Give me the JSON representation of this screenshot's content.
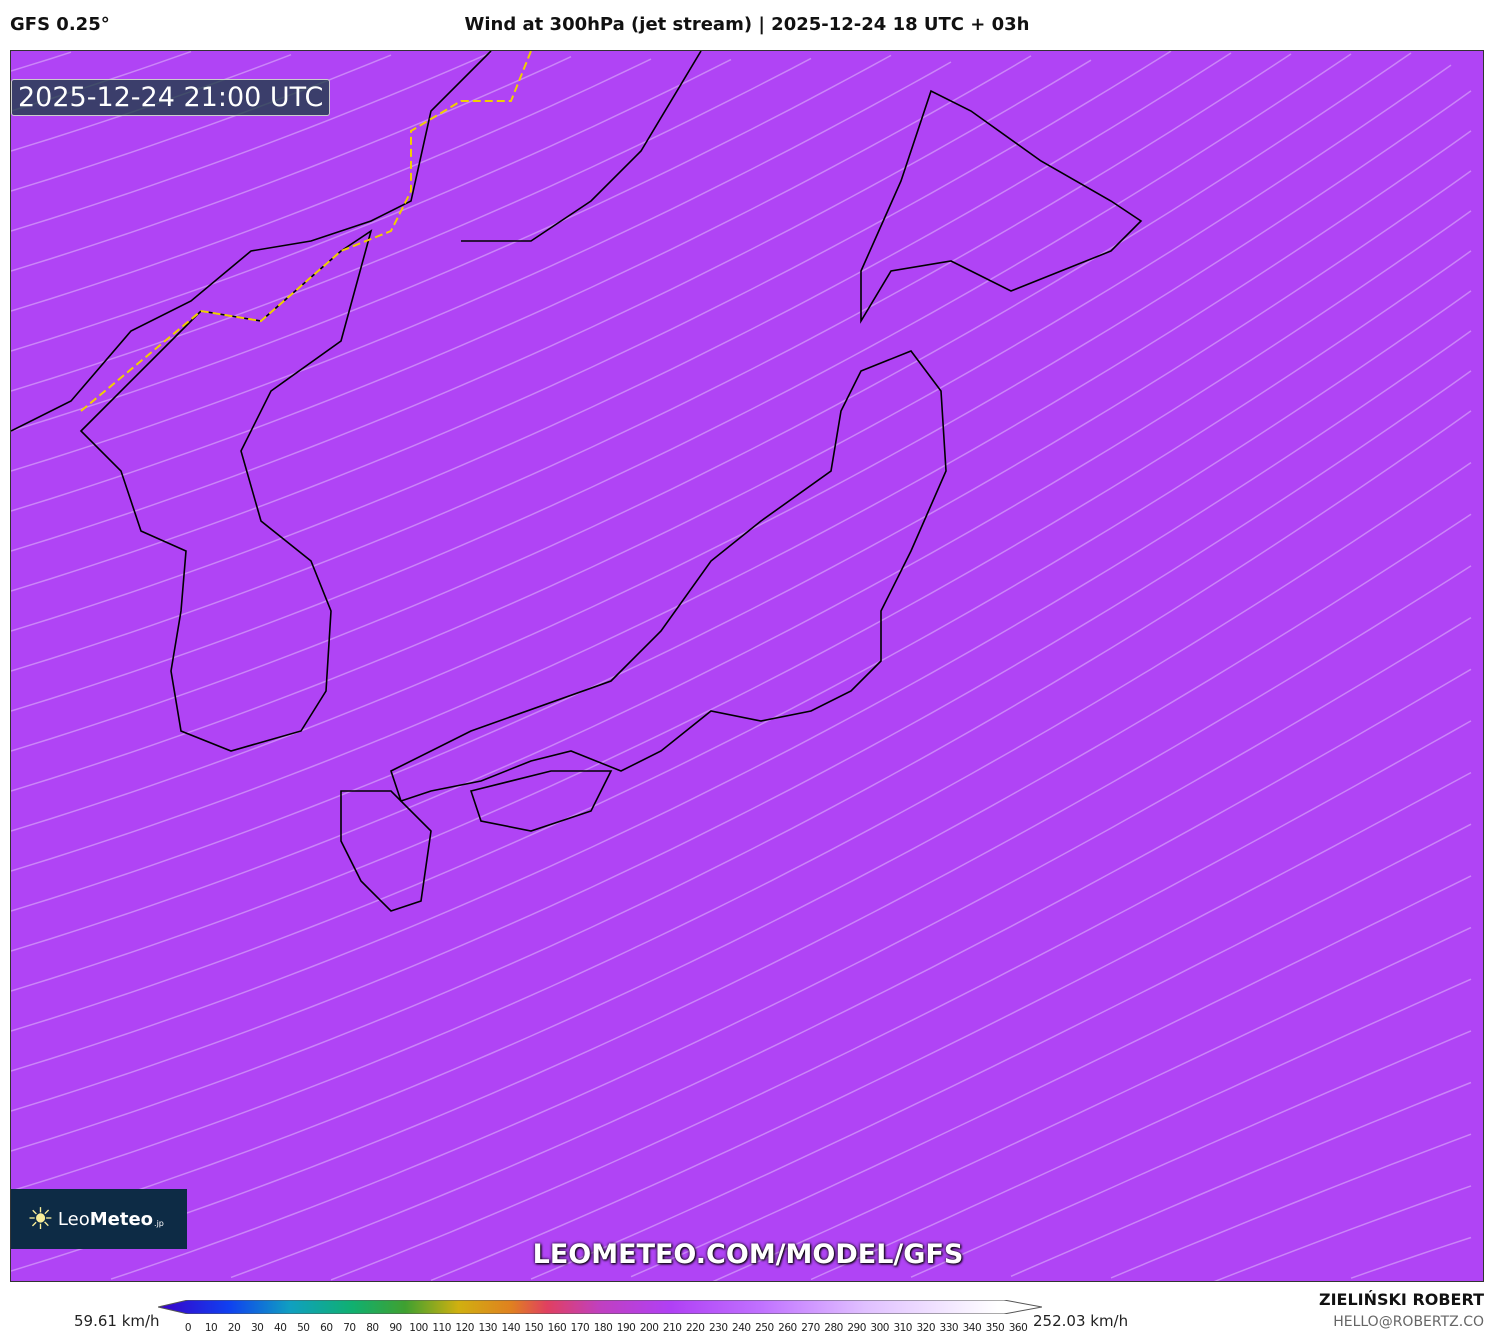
{
  "header": {
    "model": "GFS 0.25°",
    "title": "Wind at 300hPa (jet stream) | 2025-12-24 18 UTC + 03h"
  },
  "map": {
    "timestamp": "2025-12-24 21:00 UTC",
    "watermark_url": "LEOMETEO.COM/MODEL/GFS",
    "logo": {
      "text_light": "Leo",
      "text_bold": "Meteo",
      "suffix": ".jp",
      "icon": "sun-icon"
    }
  },
  "legend": {
    "min_label": "59.61 km/h",
    "max_label": "252.03 km/h",
    "unit": "km/h",
    "ticks": [
      "0",
      "10",
      "20",
      "30",
      "40",
      "50",
      "60",
      "70",
      "80",
      "90",
      "100",
      "110",
      "120",
      "130",
      "140",
      "150",
      "160",
      "170",
      "180",
      "190",
      "200",
      "210",
      "220",
      "230",
      "240",
      "250",
      "260",
      "270",
      "280",
      "290",
      "300",
      "310",
      "320",
      "330",
      "340",
      "350",
      "360"
    ],
    "colors": [
      "#3a00c8",
      "#1040f0",
      "#10a0c0",
      "#10b070",
      "#40a030",
      "#d0b010",
      "#e08020",
      "#e04060",
      "#c040c0",
      "#b040f5",
      "#c070ff",
      "#e0c0ff",
      "#ffffff"
    ]
  },
  "footer": {
    "author": "ZIELIŃSKI ROBERT",
    "email": "HELLO@ROBERTZ.CO"
  }
}
